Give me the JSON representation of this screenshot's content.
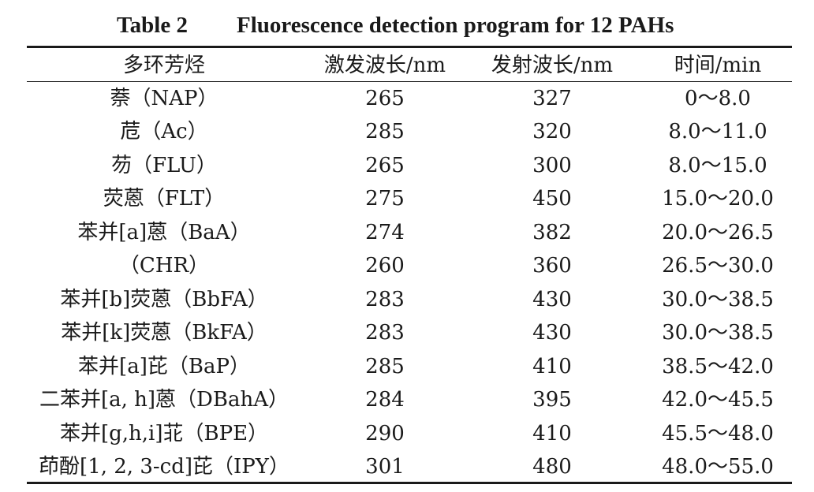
{
  "caption": {
    "label": "Table  2",
    "title": "Fluorescence detection program for 12 PAHs"
  },
  "table": {
    "headers": [
      "多环芳烃",
      "激发波长/nm",
      "发射波长/nm",
      "时间/min"
    ],
    "rows": [
      [
        "萘（NAP）",
        "265",
        "327",
        "0～8.0"
      ],
      [
        "苊（Ac）",
        "285",
        "320",
        "8.0～11.0"
      ],
      [
        "芴（FLU）",
        "265",
        "300",
        "8.0～15.0"
      ],
      [
        "荧蒽（FLT）",
        "275",
        "450",
        "15.0～20.0"
      ],
      [
        "苯并[a]蒽（BaA）",
        "274",
        "382",
        "20.0～26.5"
      ],
      [
        "（CHR）",
        "260",
        "360",
        "26.5～30.0"
      ],
      [
        "苯并[b]荧蒽（BbFA）",
        "283",
        "430",
        "30.0～38.5"
      ],
      [
        "苯并[k]荧蒽（BkFA）",
        "283",
        "430",
        "30.0～38.5"
      ],
      [
        "苯并[a]芘（BaP）",
        "285",
        "410",
        "38.5～42.0"
      ],
      [
        "二苯并[a, h]蒽（DBahA）",
        "284",
        "395",
        "42.0～45.5"
      ],
      [
        "苯并[g,h,i]苝（BPE）",
        "290",
        "410",
        "45.5～48.0"
      ],
      [
        "茚酚[1, 2, 3-cd]芘（IPY）",
        "301",
        "480",
        "48.0～55.0"
      ]
    ]
  }
}
